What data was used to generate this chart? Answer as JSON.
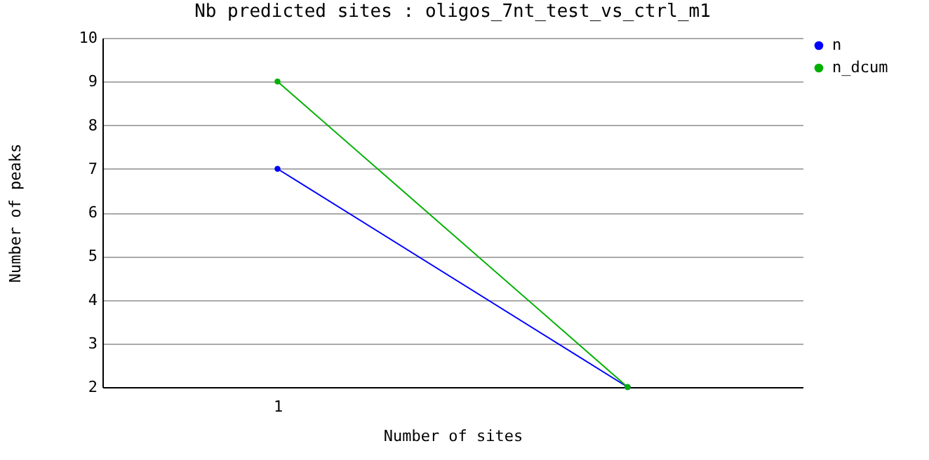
{
  "chart_data": {
    "type": "line",
    "title": "Nb predicted sites : oligos_7nt_test_vs_ctrl_m1",
    "xlabel": "Number of sites",
    "ylabel": "Number of peaks",
    "categories": [
      "1",
      null
    ],
    "series": [
      {
        "name": "n",
        "color": "#0000ff",
        "values": [
          7,
          2
        ]
      },
      {
        "name": "n_dcum",
        "color": "#00b000",
        "values": [
          9,
          2
        ]
      }
    ],
    "ylim": [
      2,
      10
    ],
    "yticks": [
      2,
      3,
      4,
      5,
      6,
      7,
      8,
      9,
      10
    ],
    "grid": "y",
    "legend": "top right",
    "marker": "circle",
    "line_style": "solid"
  }
}
